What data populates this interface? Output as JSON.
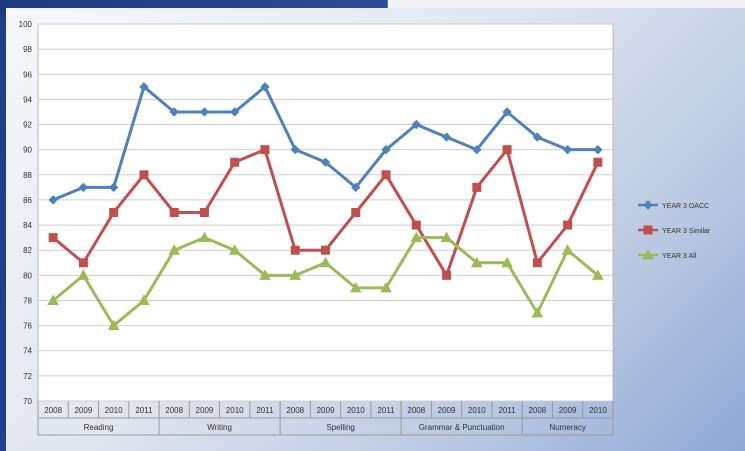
{
  "chart_data": {
    "type": "line",
    "title": "",
    "xlabel": "",
    "ylabel": "",
    "ylim": [
      70,
      100
    ],
    "yticks": [
      70,
      72,
      74,
      76,
      78,
      80,
      82,
      84,
      86,
      88,
      90,
      92,
      94,
      96,
      98,
      100
    ],
    "grid": true,
    "legend_position": "right",
    "groups": [
      {
        "label": "Reading",
        "years": [
          "2008",
          "2009",
          "2010",
          "2011"
        ]
      },
      {
        "label": "Writing",
        "years": [
          "2008",
          "2009",
          "2010",
          "2011"
        ]
      },
      {
        "label": "Spelling",
        "years": [
          "2008",
          "2009",
          "2010",
          "2011"
        ]
      },
      {
        "label": "Grammar & Punctuation",
        "years": [
          "2008",
          "2009",
          "2010",
          "2011"
        ]
      },
      {
        "label": "Numeracy",
        "years": [
          "2008",
          "2009",
          "2010"
        ]
      }
    ],
    "series": [
      {
        "name": "YEAR 3 OACC",
        "color": "#4f81bd",
        "marker": "diamond",
        "values": [
          86,
          87,
          87,
          95,
          93,
          93,
          93,
          95,
          90,
          89,
          87,
          90,
          92,
          91,
          90,
          93,
          91,
          90,
          90
        ]
      },
      {
        "name": "YEAR 3 Similar",
        "color": "#c0504d",
        "marker": "square",
        "values": [
          83,
          81,
          85,
          88,
          85,
          85,
          89,
          90,
          82,
          82,
          85,
          88,
          84,
          80,
          87,
          90,
          81,
          84,
          89
        ]
      },
      {
        "name": "YEAR 3 All",
        "color": "#9bbb59",
        "marker": "triangle",
        "values": [
          78,
          80,
          76,
          78,
          82,
          83,
          82,
          80,
          80,
          81,
          79,
          79,
          83,
          83,
          81,
          81,
          77,
          82,
          80
        ]
      }
    ]
  }
}
